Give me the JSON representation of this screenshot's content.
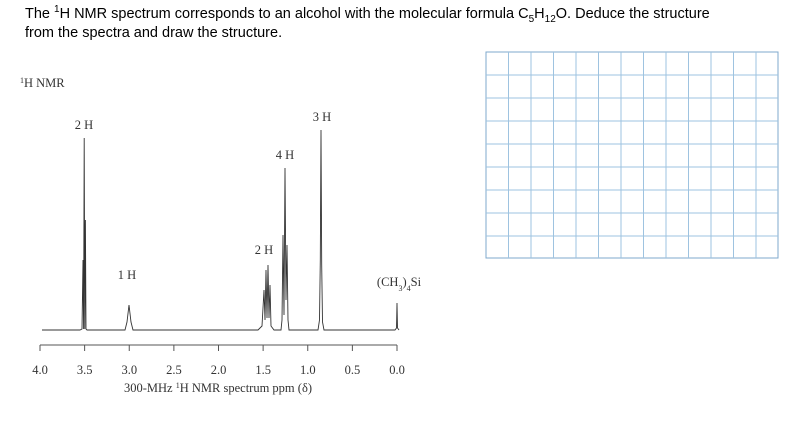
{
  "question": {
    "lines": [
      [
        {
          "text": "The "
        },
        {
          "sup": "1"
        },
        {
          "text": "H NMR spectrum corresponds to an alcohol with the molecular formula C"
        },
        {
          "sub": "5"
        },
        {
          "text": "H"
        },
        {
          "sub": "12"
        },
        {
          "text": "O. Deduce the structure"
        }
      ],
      [
        {
          "text": "from the spectra and draw the structure."
        }
      ]
    ]
  },
  "spectrum": {
    "title": [
      {
        "sup": "1"
      },
      {
        "text": "H NMR"
      }
    ],
    "peak_labels": [
      "2 H",
      "1 H",
      "2 H",
      "4 H",
      "3 H"
    ],
    "reference_label": [
      {
        "text": "(CH"
      },
      {
        "sub": "3"
      },
      {
        "text": ")"
      },
      {
        "sub": "4"
      },
      {
        "text": "Si"
      }
    ],
    "ticks": [
      "4.0",
      "3.5",
      "3.0",
      "2.5",
      "2.0",
      "1.5",
      "1.0",
      "0.5",
      "0.0"
    ],
    "caption": [
      {
        "text": "300-MHz "
      },
      {
        "sup": "1"
      },
      {
        "text": "H NMR spectrum ppm (δ)"
      }
    ]
  }
}
